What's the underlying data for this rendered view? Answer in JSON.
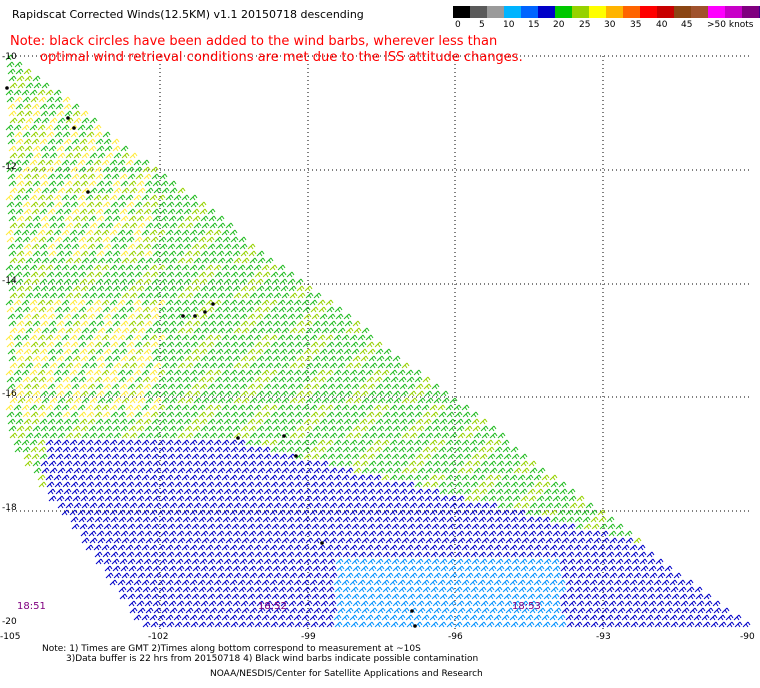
{
  "title": "Rapidscat Corrected Winds(12.5KM) v1.1 20150718 descending",
  "note_line1": "Note: black circles have been added to the wind barbs, wherever less than",
  "note_line2": "optimal wind retrieval conditions are met due to the ISS attitude changes.",
  "legend": {
    "colors": [
      "#000000",
      "#5a5a5a",
      "#9a9a9a",
      "#00b4ff",
      "#0064ff",
      "#0000c8",
      "#00c800",
      "#96d200",
      "#ffff00",
      "#ffb400",
      "#ff6400",
      "#ff0000",
      "#c80000",
      "#8b4513",
      "#a0522d",
      "#ff00ff",
      "#c800c8",
      "#800080",
      "#40008a"
    ],
    "labels": [
      "0",
      "5",
      "10",
      "15",
      "20",
      "25",
      "30",
      "35",
      "40",
      "45",
      ">50 knots"
    ]
  },
  "lat_labels": [
    "-10",
    "-12",
    "-14",
    "-16",
    "-18",
    "-20"
  ],
  "lon_labels": [
    "-105",
    "-102",
    "-99",
    "-96",
    "-93",
    "-90"
  ],
  "time_labels": [
    "18:51",
    "18:52",
    "18:53"
  ],
  "footer": {
    "line1": "Note: 1) Times are GMT 2)Times along bottom correspond to measurement at ~10S",
    "line2": "3)Data buffer is 22 hrs from 20150718 4) Black wind barbs indicate possible contamination",
    "line3": "NOAA/NESDIS/Center for Satellite Applications and Research"
  }
}
